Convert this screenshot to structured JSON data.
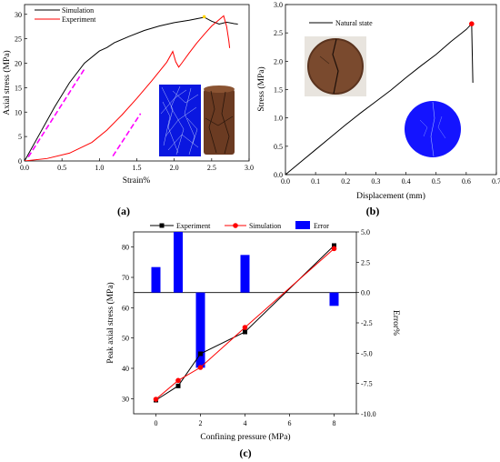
{
  "chart_data": [
    {
      "panel": "a",
      "type": "line",
      "xlabel": "Strain%",
      "ylabel": "Axial stress (MPa)",
      "xlim": [
        0,
        3
      ],
      "ylim": [
        0,
        32
      ],
      "xticks": [
        "0.0",
        "0.5",
        "1.0",
        "1.5",
        "2.0",
        "2.5",
        "3.0"
      ],
      "yticks": [
        "0",
        "5",
        "10",
        "15",
        "20",
        "25",
        "30"
      ],
      "legend_position": "top-left",
      "series": [
        {
          "name": "Simulation",
          "color": "#000000",
          "x": [
            0,
            0.2,
            0.4,
            0.6,
            0.8,
            1.0,
            1.1,
            1.2,
            1.4,
            1.6,
            1.8,
            2.0,
            2.2,
            2.3,
            2.4,
            2.5,
            2.6,
            2.7,
            2.8,
            2.85
          ],
          "y": [
            0,
            5.5,
            11,
            16,
            20,
            22.5,
            23.2,
            24.2,
            25.5,
            26.7,
            27.6,
            28.3,
            28.8,
            29.1,
            29.4,
            28.6,
            28.0,
            28.4,
            28.1,
            28.0
          ]
        },
        {
          "name": "Experiment",
          "color": "#ff0000",
          "x": [
            0,
            0.3,
            0.6,
            0.9,
            1.1,
            1.3,
            1.5,
            1.7,
            1.9,
            1.98,
            2.02,
            2.06,
            2.1,
            2.2,
            2.3,
            2.4,
            2.5,
            2.6,
            2.66,
            2.7,
            2.73,
            2.74
          ],
          "y": [
            0,
            0.5,
            1.6,
            3.8,
            6.3,
            9.4,
            12.8,
            16.4,
            20.2,
            22.4,
            20.3,
            19.2,
            20,
            22.1,
            24.1,
            25.9,
            27.6,
            28.9,
            29.7,
            27.5,
            24.5,
            23.1
          ]
        }
      ],
      "guides": {
        "color": "#ff00ff",
        "style": "dashed",
        "lines": [
          {
            "x": [
              0.05,
              0.8
            ],
            "y": [
              0.8,
              18.8
            ]
          },
          {
            "x": [
              1.18,
              1.55
            ],
            "y": [
              1.0,
              9.7
            ]
          }
        ]
      },
      "annotations": [
        {
          "type": "point",
          "x": 2.4,
          "y": 29.5,
          "color": "#ffd400"
        }
      ],
      "insets": [
        "crack-pattern",
        "core-photo"
      ]
    },
    {
      "panel": "b",
      "type": "line",
      "xlabel": "Displacement (mm)",
      "ylabel": "Stress (MPa)",
      "xlim": [
        0,
        0.7
      ],
      "ylim": [
        0,
        3
      ],
      "xticks": [
        "0.0",
        "0.1",
        "0.2",
        "0.3",
        "0.4",
        "0.5",
        "0.6",
        "0.7"
      ],
      "yticks": [
        "0.0",
        "0.5",
        "1.0",
        "1.5",
        "2.0",
        "2.5",
        "3.0"
      ],
      "legend_position": "top-left",
      "series": [
        {
          "name": "Natural state",
          "color": "#000000",
          "x": [
            0,
            0.05,
            0.1,
            0.15,
            0.2,
            0.25,
            0.3,
            0.35,
            0.4,
            0.45,
            0.5,
            0.55,
            0.6,
            0.618,
            0.622
          ],
          "y": [
            0,
            0.22,
            0.44,
            0.66,
            0.88,
            1.09,
            1.29,
            1.49,
            1.71,
            1.92,
            2.12,
            2.35,
            2.56,
            2.66,
            1.62
          ]
        }
      ],
      "annotations": [
        {
          "type": "peak",
          "x": 0.618,
          "y": 2.66,
          "color": "#ff0000"
        }
      ],
      "insets": [
        "disc-photo",
        "disc-crack-pattern"
      ]
    },
    {
      "panel": "c",
      "type": "bar-line",
      "xlabel": "Confining pressure (MPa)",
      "ylabel": "Peak axial stress (MPa)",
      "y2label": "Error%",
      "xlim": [
        -1,
        9
      ],
      "ylim": [
        25,
        85
      ],
      "y2lim": [
        -10,
        5
      ],
      "xticks": [
        "0",
        "2",
        "4",
        "6",
        "8"
      ],
      "yticks": [
        "30",
        "40",
        "50",
        "60",
        "70",
        "80"
      ],
      "y2ticks": [
        "-10.0",
        "-7.5",
        "-5.0",
        "-2.5",
        "0.0",
        "2.5",
        "5.0"
      ],
      "legend_position": "top",
      "series": [
        {
          "name": "Experiment",
          "color": "#000000",
          "marker": "square",
          "x": [
            0,
            1,
            2,
            4,
            8
          ],
          "y": [
            29.5,
            34.2,
            44.8,
            52,
            80.5
          ]
        },
        {
          "name": "Simulation",
          "color": "#ff0000",
          "marker": "circle",
          "x": [
            0,
            1,
            2,
            4,
            8
          ],
          "y": [
            29.8,
            36,
            40.3,
            53.5,
            79.5
          ]
        },
        {
          "name": "Error",
          "color": "#0000ff",
          "type": "bar",
          "axis": "y2",
          "x": [
            0,
            1,
            2,
            4,
            8
          ],
          "y": [
            2.1,
            5.0,
            -6.2,
            3.1,
            -1.1
          ]
        }
      ]
    }
  ],
  "panel_labels": [
    "(a)",
    "(b)",
    "(c)"
  ]
}
